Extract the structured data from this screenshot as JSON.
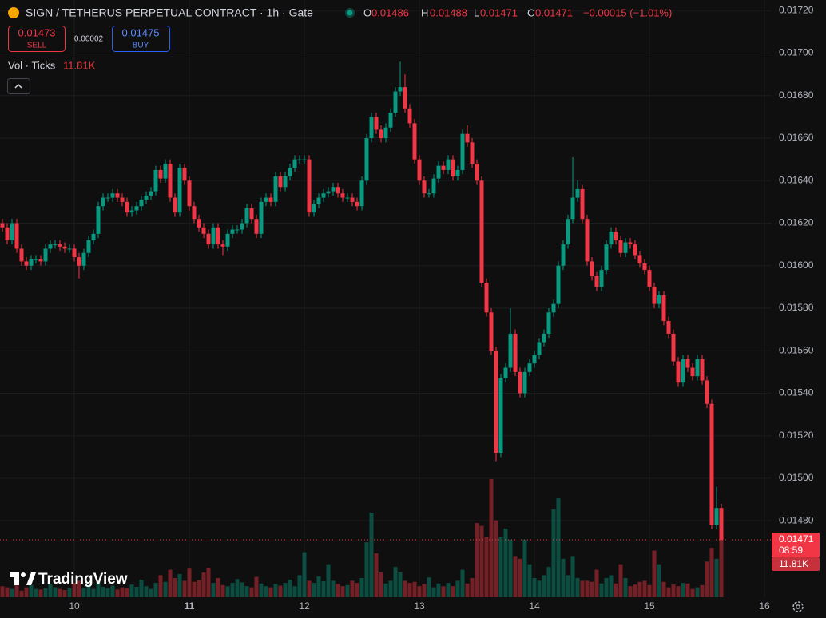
{
  "chart_data": {
    "type": "candlestick",
    "title": "SIGN / TETHERUS PERPETUAL CONTRACT · 1h · Gate",
    "legend_ohlc": [
      {
        "key": "O",
        "value": "0.01486"
      },
      {
        "key": "H",
        "value": "0.01488"
      },
      {
        "key": "L",
        "value": "0.01471"
      },
      {
        "key": "C",
        "value": "0.01471"
      }
    ],
    "change": "−0.00015 (−1.01%)",
    "sell": {
      "price": "0.01473",
      "label": "SELL"
    },
    "spread": "0.00002",
    "buy": {
      "price": "0.01475",
      "label": "BUY"
    },
    "volume_legend": {
      "label": "Vol · Ticks",
      "value": "11.81K"
    },
    "last_price": {
      "label": "0.01471",
      "countdown": "08:59",
      "volume": "11.81K"
    },
    "logo": "TradingView",
    "up_color": "#089981",
    "down_color": "#f23645",
    "open": [
      0.0162,
      0.01618,
      0.01612,
      0.0162,
      0.01608,
      0.01602,
      0.016,
      0.01603,
      0.01603,
      0.01602,
      0.01608,
      0.0161,
      0.0161,
      0.01609,
      0.01608,
      0.01608,
      0.01604,
      0.016,
      0.01606,
      0.01612,
      0.01615,
      0.01628,
      0.01632,
      0.01632,
      0.01634,
      0.01632,
      0.0163,
      0.01625,
      0.01626,
      0.01628,
      0.01631,
      0.01633,
      0.01635,
      0.01645,
      0.01641,
      0.01648,
      0.01632,
      0.01625,
      0.01646,
      0.0164,
      0.01628,
      0.01622,
      0.01618,
      0.01615,
      0.0161,
      0.01618,
      0.0161,
      0.01609,
      0.01615,
      0.01617,
      0.01617,
      0.0162,
      0.01627,
      0.01622,
      0.01615,
      0.0163,
      0.01632,
      0.0163,
      0.01642,
      0.01637,
      0.01642,
      0.01646,
      0.0165,
      0.0165,
      0.0165,
      0.01625,
      0.01629,
      0.01632,
      0.01634,
      0.01635,
      0.01637,
      0.01634,
      0.01632,
      0.01632,
      0.0163,
      0.01628,
      0.0164,
      0.0166,
      0.0167,
      0.01664,
      0.0166,
      0.01665,
      0.01672,
      0.01682,
      0.01684,
      0.01674,
      0.01667,
      0.0165,
      0.0164,
      0.01634,
      0.01634,
      0.01641,
      0.01647,
      0.01645,
      0.0165,
      0.01642,
      0.01645,
      0.01662,
      0.01658,
      0.01648,
      0.0164,
      0.01592,
      0.01578,
      0.0156,
      0.01512,
      0.01547,
      0.01552,
      0.01568,
      0.0155,
      0.0154,
      0.0155,
      0.01554,
      0.01558,
      0.01564,
      0.01568,
      0.01578,
      0.01582,
      0.016,
      0.0161,
      0.01622,
      0.01632,
      0.01636,
      0.01622,
      0.01602,
      0.01595,
      0.0159,
      0.01598,
      0.0161,
      0.01616,
      0.01612,
      0.01606,
      0.01611,
      0.0161,
      0.01605,
      0.01601,
      0.01598,
      0.0159,
      0.01582,
      0.01586,
      0.01574,
      0.01568,
      0.01555,
      0.01545,
      0.01556,
      0.01552,
      0.01548,
      0.01556,
      0.01546,
      0.01535,
      0.01478,
      0.01486
    ],
    "high": [
      0.01622,
      0.0162,
      0.01622,
      0.01622,
      0.0161,
      0.01604,
      0.01605,
      0.01605,
      0.01605,
      0.0161,
      0.01612,
      0.01612,
      0.01612,
      0.01611,
      0.0161,
      0.0161,
      0.01606,
      0.01608,
      0.01614,
      0.01617,
      0.0163,
      0.01634,
      0.01634,
      0.01636,
      0.01636,
      0.01634,
      0.01632,
      0.01628,
      0.0163,
      0.01633,
      0.01635,
      0.01637,
      0.01647,
      0.01647,
      0.0165,
      0.0165,
      0.01634,
      0.01648,
      0.01648,
      0.01642,
      0.0163,
      0.01624,
      0.0162,
      0.01617,
      0.0162,
      0.0162,
      0.01612,
      0.01617,
      0.01619,
      0.01619,
      0.01622,
      0.01629,
      0.01629,
      0.01624,
      0.01632,
      0.01634,
      0.01634,
      0.01644,
      0.01644,
      0.01644,
      0.01648,
      0.01652,
      0.01652,
      0.01652,
      0.01652,
      0.01631,
      0.01634,
      0.01636,
      0.01637,
      0.01639,
      0.01639,
      0.01636,
      0.01634,
      0.01634,
      0.01632,
      0.01642,
      0.01662,
      0.01672,
      0.01672,
      0.01666,
      0.01667,
      0.01674,
      0.01684,
      0.01696,
      0.0169,
      0.01676,
      0.01669,
      0.01652,
      0.01642,
      0.01636,
      0.01643,
      0.01649,
      0.01649,
      0.01652,
      0.01652,
      0.01647,
      0.01664,
      0.01666,
      0.0166,
      0.0165,
      0.01642,
      0.01594,
      0.0158,
      0.01562,
      0.01549,
      0.01554,
      0.0158,
      0.0157,
      0.01552,
      0.01552,
      0.01556,
      0.0156,
      0.01566,
      0.0157,
      0.0158,
      0.01584,
      0.01602,
      0.01612,
      0.01624,
      0.01651,
      0.0164,
      0.01638,
      0.01624,
      0.01604,
      0.01597,
      0.016,
      0.01612,
      0.01618,
      0.01618,
      0.01614,
      0.01613,
      0.01613,
      0.01612,
      0.01607,
      0.01603,
      0.016,
      0.01592,
      0.01588,
      0.01588,
      0.01576,
      0.0157,
      0.01557,
      0.01558,
      0.01558,
      0.01554,
      0.01558,
      0.01558,
      0.01548,
      0.01537,
      0.01496,
      0.01488
    ],
    "low": [
      0.01616,
      0.0161,
      0.0161,
      0.01606,
      0.016,
      0.01598,
      0.01598,
      0.01601,
      0.016,
      0.016,
      0.01606,
      0.01608,
      0.01607,
      0.01606,
      0.01606,
      0.01602,
      0.01594,
      0.01598,
      0.01604,
      0.0161,
      0.01613,
      0.01626,
      0.0163,
      0.0163,
      0.0163,
      0.01628,
      0.01623,
      0.01623,
      0.01624,
      0.01626,
      0.01629,
      0.01631,
      0.01633,
      0.01639,
      0.01639,
      0.0163,
      0.01623,
      0.01623,
      0.01638,
      0.01626,
      0.0162,
      0.01616,
      0.01613,
      0.01608,
      0.01608,
      0.01608,
      0.01605,
      0.01607,
      0.01613,
      0.01615,
      0.01615,
      0.01618,
      0.0162,
      0.01613,
      0.01613,
      0.01628,
      0.01628,
      0.01628,
      0.01635,
      0.01635,
      0.0164,
      0.01644,
      0.01648,
      0.01648,
      0.01623,
      0.01623,
      0.01627,
      0.0163,
      0.01632,
      0.01633,
      0.01632,
      0.0163,
      0.0163,
      0.01628,
      0.01626,
      0.01626,
      0.01638,
      0.01658,
      0.01662,
      0.01658,
      0.01658,
      0.01663,
      0.0167,
      0.0168,
      0.01672,
      0.01665,
      0.01648,
      0.01638,
      0.01632,
      0.01632,
      0.01632,
      0.01639,
      0.01643,
      0.01643,
      0.0164,
      0.0164,
      0.01643,
      0.01656,
      0.01646,
      0.01638,
      0.0159,
      0.01576,
      0.01558,
      0.01508,
      0.0151,
      0.01545,
      0.0155,
      0.01548,
      0.01538,
      0.01538,
      0.01548,
      0.01552,
      0.01556,
      0.01562,
      0.01566,
      0.01576,
      0.0158,
      0.01598,
      0.01608,
      0.0162,
      0.0163,
      0.0162,
      0.016,
      0.01593,
      0.01588,
      0.01588,
      0.01596,
      0.01608,
      0.0161,
      0.01604,
      0.01604,
      0.01608,
      0.01603,
      0.01599,
      0.01596,
      0.01588,
      0.0158,
      0.0158,
      0.01572,
      0.01566,
      0.01553,
      0.01543,
      0.01543,
      0.0155,
      0.01546,
      0.01546,
      0.01544,
      0.01533,
      0.01476,
      0.01476,
      0.01471
    ],
    "close": [
      0.01618,
      0.01612,
      0.0162,
      0.01608,
      0.01602,
      0.016,
      0.01603,
      0.01603,
      0.01602,
      0.01608,
      0.0161,
      0.0161,
      0.01609,
      0.01608,
      0.01608,
      0.01604,
      0.016,
      0.01606,
      0.01612,
      0.01615,
      0.01628,
      0.01632,
      0.01632,
      0.01634,
      0.01632,
      0.0163,
      0.01625,
      0.01626,
      0.01628,
      0.01631,
      0.01633,
      0.01635,
      0.01645,
      0.01641,
      0.01648,
      0.01632,
      0.01625,
      0.01646,
      0.0164,
      0.01628,
      0.01622,
      0.01618,
      0.01615,
      0.0161,
      0.01618,
      0.0161,
      0.01609,
      0.01615,
      0.01617,
      0.01617,
      0.0162,
      0.01627,
      0.01622,
      0.01615,
      0.0163,
      0.01632,
      0.0163,
      0.01642,
      0.01637,
      0.01642,
      0.01646,
      0.0165,
      0.0165,
      0.0165,
      0.01625,
      0.01629,
      0.01632,
      0.01634,
      0.01635,
      0.01637,
      0.01634,
      0.01632,
      0.01632,
      0.0163,
      0.01628,
      0.0164,
      0.0166,
      0.0167,
      0.01664,
      0.0166,
      0.01665,
      0.01672,
      0.01682,
      0.01684,
      0.01674,
      0.01667,
      0.0165,
      0.0164,
      0.01634,
      0.01634,
      0.01641,
      0.01647,
      0.01645,
      0.0165,
      0.01642,
      0.01645,
      0.01662,
      0.01658,
      0.01648,
      0.0164,
      0.01592,
      0.01578,
      0.0156,
      0.01512,
      0.01547,
      0.01552,
      0.01568,
      0.0155,
      0.0154,
      0.0155,
      0.01554,
      0.01558,
      0.01564,
      0.01568,
      0.01578,
      0.01582,
      0.016,
      0.0161,
      0.01622,
      0.01632,
      0.01636,
      0.01622,
      0.01602,
      0.01595,
      0.0159,
      0.01598,
      0.0161,
      0.01616,
      0.01612,
      0.01606,
      0.01611,
      0.0161,
      0.01605,
      0.01601,
      0.01598,
      0.0159,
      0.01582,
      0.01586,
      0.01574,
      0.01568,
      0.01555,
      0.01545,
      0.01556,
      0.01552,
      0.01548,
      0.01556,
      0.01546,
      0.01535,
      0.01478,
      0.01486,
      0.01471
    ],
    "volume": [
      2000,
      1800,
      1500,
      2500,
      1200,
      1800,
      2200,
      1500,
      1400,
      1600,
      2400,
      1800,
      1500,
      1300,
      1600,
      2600,
      3000,
      1700,
      2200,
      1500,
      2800,
      1900,
      1600,
      2100,
      1400,
      1800,
      1700,
      2300,
      1900,
      3200,
      2000,
      1500,
      2600,
      4000,
      2800,
      5000,
      3500,
      4200,
      3000,
      5200,
      2800,
      3100,
      4500,
      5300,
      2600,
      3500,
      2200,
      2000,
      2600,
      3300,
      2700,
      2000,
      1800,
      3700,
      2500,
      2000,
      1800,
      2400,
      2100,
      2600,
      3200,
      2000,
      4000,
      8200,
      3000,
      2600,
      3800,
      2900,
      6000,
      3000,
      2400,
      2000,
      2200,
      3000,
      2600,
      3500,
      10000,
      15400,
      8000,
      4500,
      2500,
      3000,
      5500,
      4500,
      3000,
      2600,
      2800,
      2000,
      2400,
      3600,
      1800,
      2500,
      2000,
      2600,
      2000,
      3000,
      5000,
      2500,
      3500,
      13500,
      13000,
      11000,
      21500,
      14000,
      11000,
      12500,
      10500,
      7500,
      7000,
      10500,
      6000,
      3500,
      3000,
      4000,
      5500,
      16000,
      18000,
      7000,
      4000,
      7500,
      3500,
      3000,
      3000,
      2800,
      5000,
      2500,
      3500,
      4000,
      2500,
      6000,
      3500,
      2000,
      2300,
      2800,
      3000,
      2200,
      8500,
      6000,
      2800,
      1800,
      2300,
      2000,
      2600,
      2500,
      1500,
      1800,
      2200,
      6500,
      9000,
      7000,
      11810
    ],
    "ylim": [
      0.01444,
      0.01725
    ],
    "yticks": [
      {
        "value": 0.0148,
        "label": "0.01480"
      },
      {
        "value": 0.015,
        "label": "0.01500"
      },
      {
        "value": 0.0152,
        "label": "0.01520"
      },
      {
        "value": 0.0154,
        "label": "0.01540"
      },
      {
        "value": 0.0156,
        "label": "0.01560"
      },
      {
        "value": 0.0158,
        "label": "0.01580"
      },
      {
        "value": 0.016,
        "label": "0.01600"
      },
      {
        "value": 0.0162,
        "label": "0.01620"
      },
      {
        "value": 0.0164,
        "label": "0.01640"
      },
      {
        "value": 0.0166,
        "label": "0.01660"
      },
      {
        "value": 0.0168,
        "label": "0.01680"
      },
      {
        "value": 0.017,
        "label": "0.01700"
      },
      {
        "value": 0.0172,
        "label": "0.01720"
      }
    ],
    "xlim": [
      -0.5,
      160.5
    ],
    "xticks": [
      {
        "value": 15,
        "label": "10"
      },
      {
        "value": 39,
        "label": "11"
      },
      {
        "value": 63,
        "label": "12"
      },
      {
        "value": 87,
        "label": "13"
      },
      {
        "value": 111,
        "label": "14"
      },
      {
        "value": 135,
        "label": "15"
      },
      {
        "value": 159,
        "label": "16"
      }
    ],
    "grid": true
  }
}
